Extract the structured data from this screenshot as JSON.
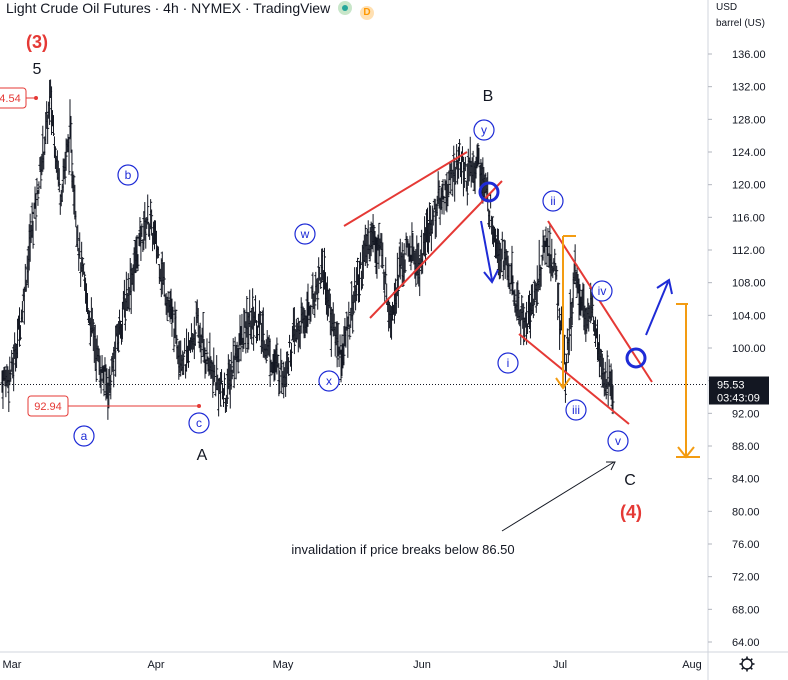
{
  "header": {
    "title": "Light Crude Oil Futures · 4h · NYMEX · TradingView",
    "badge_d": "D"
  },
  "axis_header": {
    "currency": "USD",
    "unit": "barrel (US)"
  },
  "colors": {
    "red": "#e53935",
    "blue": "#1e2bd6",
    "orange": "#f39c12",
    "price_tag_bg": "#131722"
  },
  "price_tag": {
    "price": "95.53",
    "countdown": "03:43:09"
  },
  "chart_data": {
    "type": "line",
    "style": "ohlc-bars",
    "x_ticks": [
      "Mar",
      "Apr",
      "May",
      "Jun",
      "Jul",
      "Aug"
    ],
    "y_ticks": [
      "136.00",
      "132.00",
      "128.00",
      "124.00",
      "120.00",
      "116.00",
      "112.00",
      "108.00",
      "104.00",
      "100.00",
      "96.00",
      "92.00",
      "88.00",
      "84.00",
      "80.00",
      "76.00",
      "72.00",
      "68.00",
      "64.00"
    ],
    "ylim": [
      61,
      141
    ],
    "grid": false,
    "current_price": 95.53,
    "price_path": [
      {
        "x": 0,
        "y": 96
      },
      {
        "x": 2,
        "y": 97
      },
      {
        "x": 4,
        "y": 104
      },
      {
        "x": 6,
        "y": 114
      },
      {
        "x": 8,
        "y": 122
      },
      {
        "x": 10,
        "y": 130.5
      },
      {
        "x": 12,
        "y": 119
      },
      {
        "x": 14,
        "y": 126
      },
      {
        "x": 16,
        "y": 111
      },
      {
        "x": 18,
        "y": 104
      },
      {
        "x": 20,
        "y": 98
      },
      {
        "x": 22,
        "y": 95
      },
      {
        "x": 24,
        "y": 102
      },
      {
        "x": 26,
        "y": 107
      },
      {
        "x": 28,
        "y": 112
      },
      {
        "x": 30,
        "y": 116
      },
      {
        "x": 32,
        "y": 112
      },
      {
        "x": 34,
        "y": 106
      },
      {
        "x": 36,
        "y": 101
      },
      {
        "x": 38,
        "y": 98
      },
      {
        "x": 40,
        "y": 103
      },
      {
        "x": 42,
        "y": 99
      },
      {
        "x": 44,
        "y": 96
      },
      {
        "x": 46,
        "y": 94
      },
      {
        "x": 48,
        "y": 99
      },
      {
        "x": 50,
        "y": 102
      },
      {
        "x": 52,
        "y": 104
      },
      {
        "x": 54,
        "y": 101
      },
      {
        "x": 56,
        "y": 98
      },
      {
        "x": 58,
        "y": 97
      },
      {
        "x": 60,
        "y": 101
      },
      {
        "x": 62,
        "y": 103
      },
      {
        "x": 64,
        "y": 106
      },
      {
        "x": 66,
        "y": 110
      },
      {
        "x": 68,
        "y": 103
      },
      {
        "x": 70,
        "y": 99
      },
      {
        "x": 72,
        "y": 105
      },
      {
        "x": 74,
        "y": 110
      },
      {
        "x": 76,
        "y": 114
      },
      {
        "x": 78,
        "y": 112
      },
      {
        "x": 80,
        "y": 104
      },
      {
        "x": 82,
        "y": 110
      },
      {
        "x": 84,
        "y": 112
      },
      {
        "x": 86,
        "y": 110
      },
      {
        "x": 88,
        "y": 115
      },
      {
        "x": 90,
        "y": 118
      },
      {
        "x": 92,
        "y": 120
      },
      {
        "x": 94,
        "y": 123
      },
      {
        "x": 96,
        "y": 121
      },
      {
        "x": 98,
        "y": 123
      },
      {
        "x": 100,
        "y": 118
      },
      {
        "x": 102,
        "y": 113
      },
      {
        "x": 104,
        "y": 110
      },
      {
        "x": 106,
        "y": 105
      },
      {
        "x": 108,
        "y": 103
      },
      {
        "x": 110,
        "y": 107
      },
      {
        "x": 112,
        "y": 113
      },
      {
        "x": 114,
        "y": 109
      },
      {
        "x": 116,
        "y": 97
      },
      {
        "x": 118,
        "y": 109
      },
      {
        "x": 120,
        "y": 104
      },
      {
        "x": 122,
        "y": 104
      },
      {
        "x": 124,
        "y": 97
      },
      {
        "x": 126,
        "y": 94
      }
    ],
    "price_path_x_note": "",
    "annotations": [
      {
        "id": "wave3",
        "text": "(3)",
        "color": "red"
      },
      {
        "id": "wave5",
        "text": "5",
        "color": "black"
      },
      {
        "id": "waveB",
        "text": "B",
        "color": "black"
      },
      {
        "id": "waveA",
        "text": "A",
        "color": "black"
      },
      {
        "id": "waveC",
        "text": "C",
        "color": "black"
      },
      {
        "id": "wave4",
        "text": "(4)",
        "color": "red"
      },
      {
        "id": "note",
        "text": "invalidation if price breaks below 86.50",
        "color": "black"
      }
    ],
    "circle_labels": [
      "b",
      "a",
      "c",
      "w",
      "x",
      "y",
      "ii",
      "i",
      "iii",
      "iv",
      "v"
    ],
    "price_labels": [
      "4.54",
      "92.94"
    ]
  }
}
